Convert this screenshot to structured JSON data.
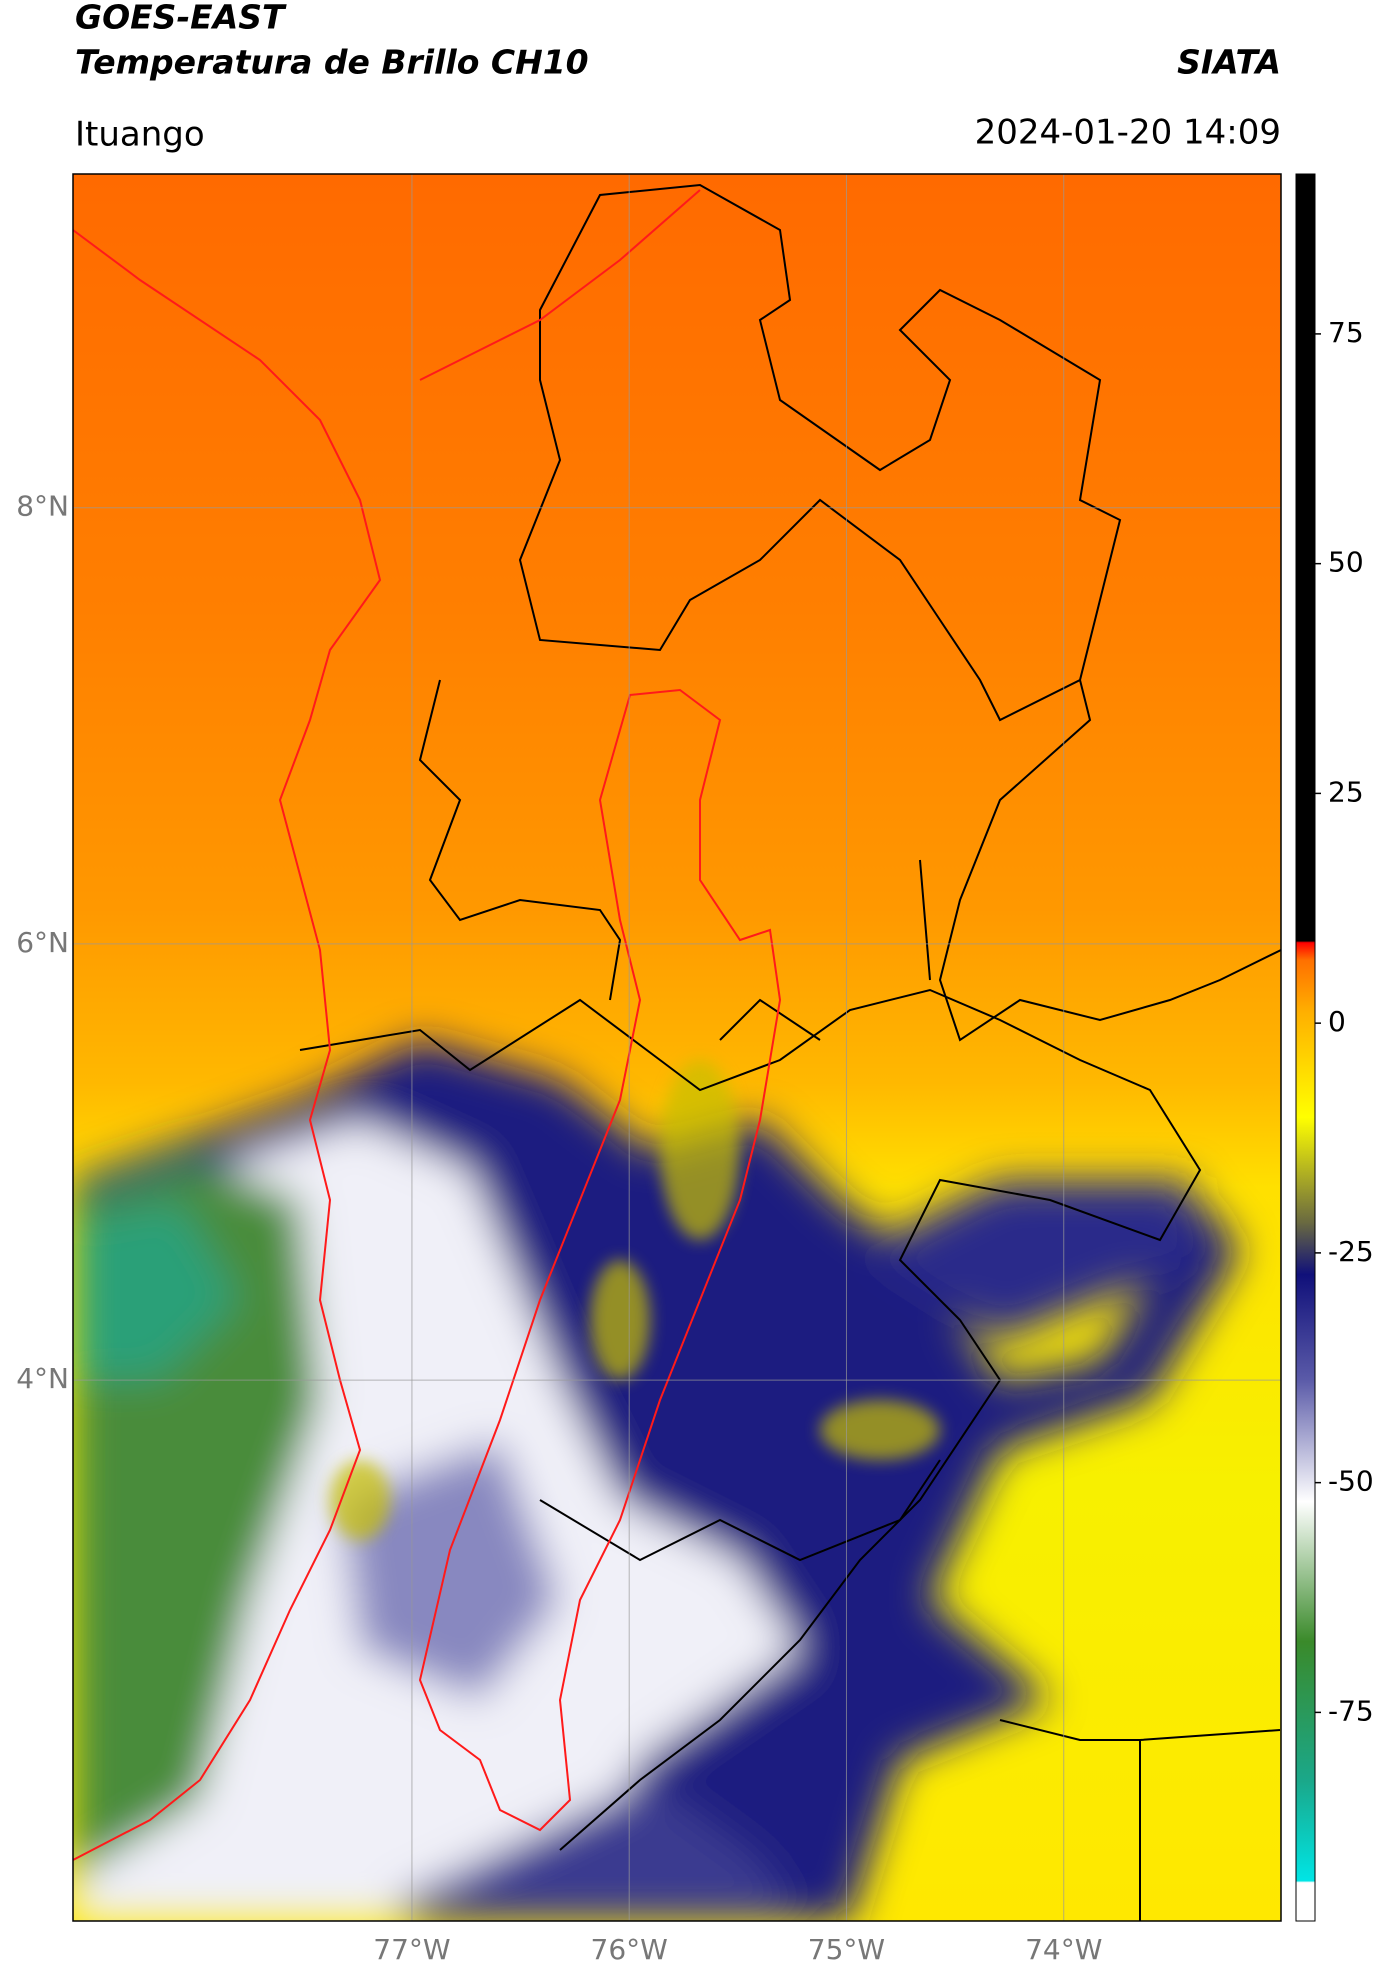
{
  "header": {
    "title": "GOES-EAST",
    "subtitle": "Temperatura de Brillo CH10",
    "agency": "SIATA",
    "region": "Ituango",
    "datetime": "2024-01-20 14:09"
  },
  "map": {
    "xlim": [
      -78.56,
      -73.0
    ],
    "ylim": [
      1.52,
      9.53
    ],
    "xticks": [
      {
        "value": -77,
        "label": "77°W"
      },
      {
        "value": -76,
        "label": "76°W"
      },
      {
        "value": -75,
        "label": "75°W"
      },
      {
        "value": -74,
        "label": "74°W"
      }
    ],
    "yticks": [
      {
        "value": 8,
        "label": "8°N"
      },
      {
        "value": 6,
        "label": "6°N"
      },
      {
        "value": 4,
        "label": "4°N"
      }
    ],
    "grid": true
  },
  "colorbar": {
    "lim": [
      -97.7,
      92.4
    ],
    "ticks": [
      75,
      50,
      25,
      0,
      -25,
      -50,
      -75
    ]
  }
}
